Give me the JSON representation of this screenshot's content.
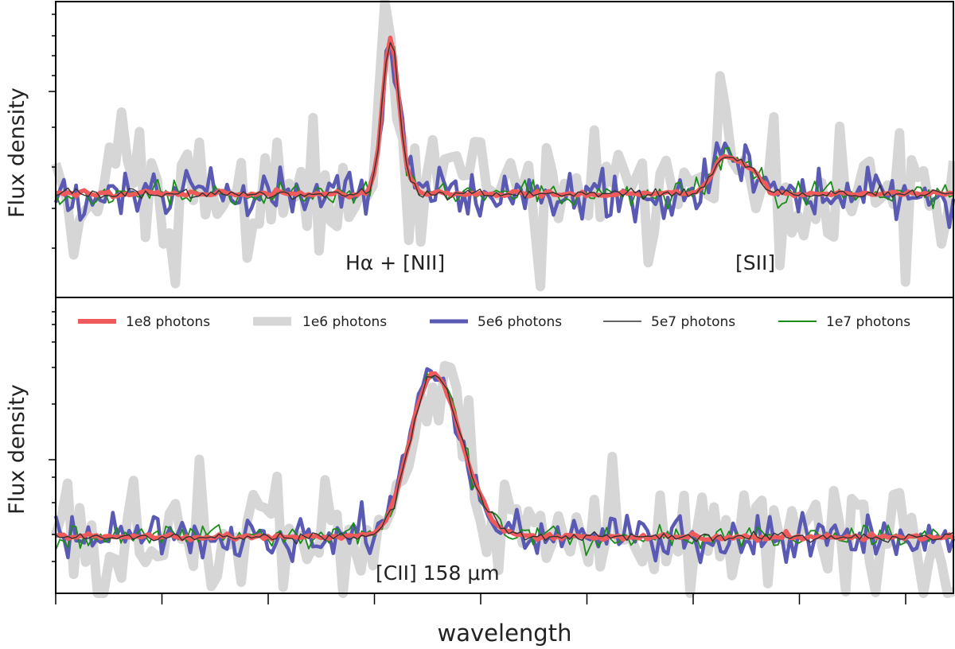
{
  "chart_data": {
    "type": "line",
    "xlabel": "wavelength",
    "x_tick_labels": "none",
    "y_tick_labels": "none",
    "legend": {
      "placement": "top of lower panel, single row",
      "entries": [
        {
          "name": "1e8 photons",
          "color": "#f05a5a",
          "style": "thick"
        },
        {
          "name": "1e6 photons",
          "color": "#d6d6d6",
          "style": "very thick"
        },
        {
          "name": "5e6 photons",
          "color": "#5a5ab4",
          "style": "medium"
        },
        {
          "name": "5e7 photons",
          "color": "#333333",
          "style": "thin"
        },
        {
          "name": "1e7 photons",
          "color": "#1a8c1a",
          "style": "thin"
        }
      ]
    },
    "panels": [
      {
        "ylabel": "Flux density",
        "annotations": [
          "Hα + [NII]",
          "[SII]"
        ],
        "x_range": [
          0,
          100
        ],
        "y_range": [
          0,
          1
        ],
        "continuum": 0.35,
        "lines": [
          {
            "center": 37.3,
            "amplitude": 0.52,
            "sigma": 0.9
          },
          {
            "center": 39.2,
            "amplitude": 0.03,
            "sigma": 0.8
          },
          {
            "center": 74.5,
            "amplitude": 0.12,
            "sigma": 1.3
          },
          {
            "center": 77.3,
            "amplitude": 0.08,
            "sigma": 1.2
          }
        ]
      },
      {
        "ylabel": "Flux density",
        "annotations": [
          "[CII] 158 μm"
        ],
        "x_range": [
          0,
          100
        ],
        "y_range": [
          0,
          1
        ],
        "continuum": 0.19,
        "lines": [
          {
            "center": 42.0,
            "amplitude": 0.55,
            "sigma": 2.5,
            "sigma_right": 3.2
          }
        ]
      }
    ],
    "series_noise_levels": {
      "1e8 photons": 0.005,
      "1e6 photons": 0.12,
      "5e6 photons": 0.04,
      "5e7 photons": 0.008,
      "1e7 photons": 0.02
    }
  }
}
